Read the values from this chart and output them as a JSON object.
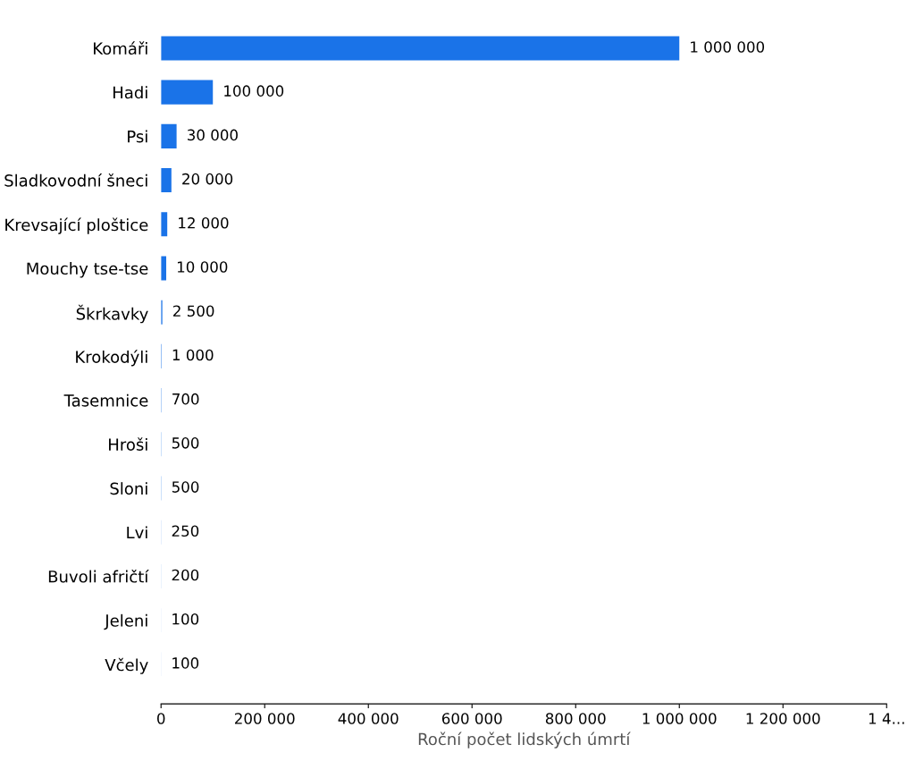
{
  "chart_data": {
    "type": "bar",
    "orientation": "horizontal",
    "xlabel": "Roční počet lidských úmrtí",
    "categories": [
      "Komáři",
      "Hadi",
      "Psi",
      "Sladkovodní šneci",
      "Krevsající ploštice",
      "Mouchy tse-tse",
      "Škrkavky",
      "Krokodýli",
      "Tasemnice",
      "Hroši",
      "Sloni",
      "Lvi",
      "Buvoli afričtí",
      "Jeleni",
      "Včely"
    ],
    "values": [
      1000000,
      100000,
      30000,
      20000,
      12000,
      10000,
      2500,
      1000,
      700,
      500,
      500,
      250,
      200,
      100,
      100
    ],
    "value_labels": [
      "1 000 000",
      "100 000",
      "30 000",
      "20 000",
      "12 000",
      "10 000",
      "2 500",
      "1 000",
      "700",
      "500",
      "500",
      "250",
      "200",
      "100",
      "100"
    ],
    "color": "#1a73e8",
    "xlim": [
      0,
      1400000
    ],
    "xticks": [
      0,
      {
        "value": 200000,
        "label": "200 000"
      },
      {
        "value": 400000,
        "label": "400 000"
      },
      {
        "value": 600000,
        "label": "600 000"
      },
      {
        "value": 800000,
        "label": "800 000"
      },
      {
        "value": 1000000,
        "label": "1 000 000"
      },
      {
        "value": 1200000,
        "label": "1 200 000"
      },
      {
        "value": 1400000,
        "label": "1 4..."
      }
    ],
    "grid": false,
    "legend": false
  }
}
